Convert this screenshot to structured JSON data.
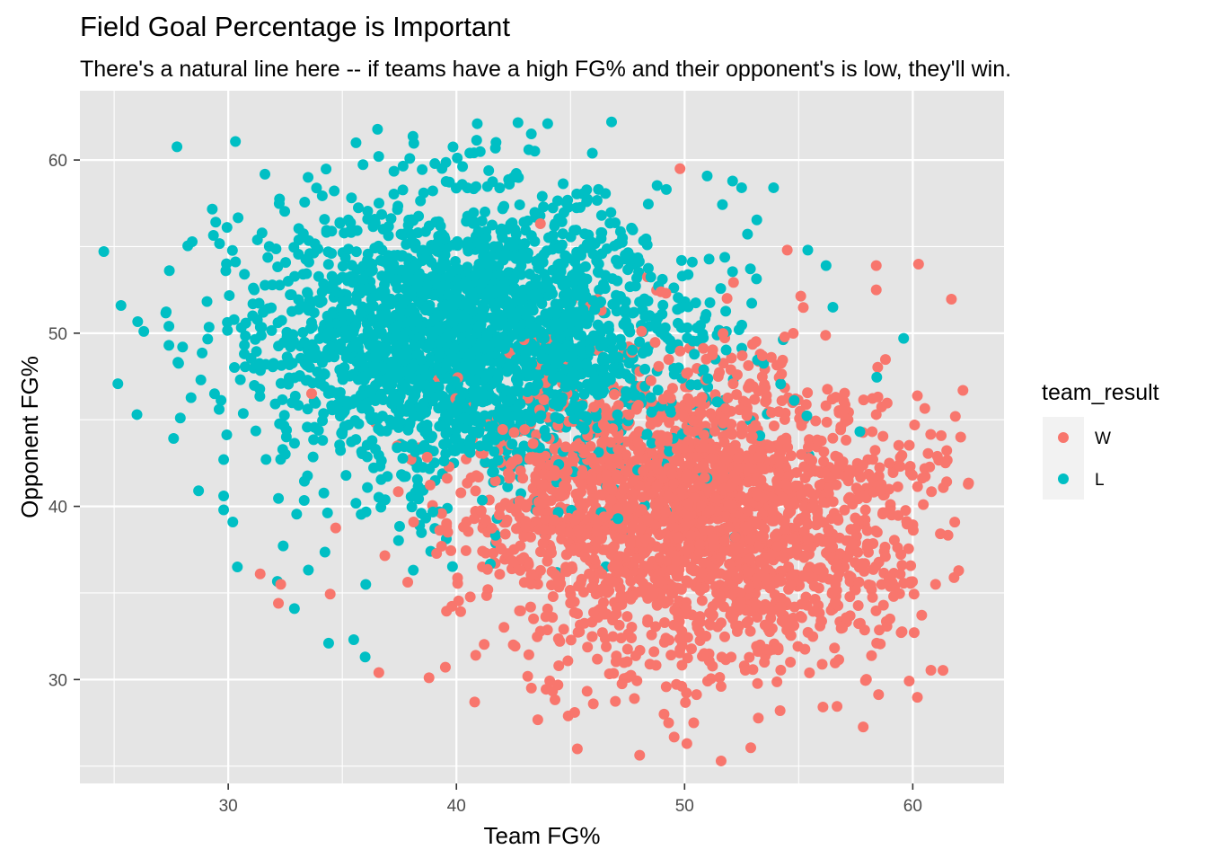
{
  "chart_data": {
    "type": "scatter",
    "title": "Field Goal Percentage is Important",
    "subtitle": "There's a natural line here -- if teams have a high FG% and their opponent's is low, they'll win.",
    "xlabel": "Team FG%",
    "ylabel": "Opponent FG%",
    "xlim": [
      23.5,
      64
    ],
    "ylim": [
      24,
      64
    ],
    "x_ticks": [
      30,
      40,
      50,
      60
    ],
    "y_ticks": [
      30,
      40,
      50,
      60
    ],
    "grid": true,
    "legend": {
      "title": "team_result",
      "placement": "right"
    },
    "colors": {
      "panel_background": "#E5E5E5",
      "grid_major": "#FFFFFF",
      "W": "#F8766D",
      "L": "#00BFC4"
    },
    "series": [
      {
        "name": "W",
        "color": "#F8766D",
        "sampling": {
          "count": 2400,
          "seed": 11,
          "team_fg_mean": 50.3,
          "team_fg_sd": 4.8,
          "opp_fg_mean": 39.6,
          "opp_fg_sd": 4.3,
          "correlation": -0.05
        },
        "points": [
          [
            49.8,
            59.5
          ],
          [
            62.2,
            46.7
          ],
          [
            62.1,
            44.0
          ],
          [
            61.0,
            35.5
          ],
          [
            59.0,
            33.5
          ],
          [
            58.4,
            53.9
          ],
          [
            58.4,
            52.5
          ],
          [
            58.8,
            37.1
          ],
          [
            57.9,
            36.7
          ],
          [
            51.6,
            25.3
          ],
          [
            45.3,
            26.0
          ],
          [
            50.1,
            26.3
          ],
          [
            50.4,
            27.5
          ],
          [
            44.9,
            27.9
          ],
          [
            49.3,
            27.5
          ],
          [
            49.1,
            28.0
          ],
          [
            47.8,
            28.9
          ],
          [
            40.8,
            28.7
          ],
          [
            46.0,
            28.6
          ],
          [
            38.8,
            30.1
          ],
          [
            36.6,
            30.4
          ],
          [
            32.2,
            34.4
          ],
          [
            31.4,
            36.1
          ],
          [
            32.3,
            35.5
          ],
          [
            58.4,
            45.3
          ],
          [
            56.5,
            36.9
          ],
          [
            57.0,
            36.5
          ],
          [
            54.5,
            54.8
          ],
          [
            51.6,
            29.6
          ]
        ]
      },
      {
        "name": "L",
        "color": "#00BFC4",
        "sampling": {
          "count": 2400,
          "seed": 29,
          "team_fg_mean": 40.7,
          "team_fg_sd": 4.8,
          "opp_fg_mean": 49.6,
          "opp_fg_sd": 4.3,
          "correlation": -0.05
        },
        "points": [
          [
            44.0,
            62.1
          ],
          [
            46.8,
            62.2
          ],
          [
            35.6,
            61.0
          ],
          [
            33.5,
            59.0
          ],
          [
            25.3,
            51.6
          ],
          [
            26.3,
            50.1
          ],
          [
            26.0,
            45.3
          ],
          [
            27.4,
            50.4
          ],
          [
            27.4,
            49.3
          ],
          [
            28.0,
            49.2
          ],
          [
            27.9,
            45.1
          ],
          [
            28.7,
            40.9
          ],
          [
            28.8,
            47.3
          ],
          [
            29.4,
            46.5
          ],
          [
            29.6,
            45.6
          ],
          [
            29.8,
            42.7
          ],
          [
            29.8,
            40.6
          ],
          [
            29.8,
            39.8
          ],
          [
            30.2,
            39.1
          ],
          [
            30.4,
            36.5
          ],
          [
            59.6,
            49.7
          ],
          [
            56.5,
            51.5
          ],
          [
            56.2,
            53.9
          ],
          [
            55.4,
            54.8
          ],
          [
            53.9,
            58.4
          ],
          [
            52.5,
            58.4
          ],
          [
            49.2,
            58.3
          ],
          [
            42.5,
            59.0
          ],
          [
            32.9,
            34.1
          ],
          [
            35.5,
            32.3
          ],
          [
            36.0,
            31.3
          ],
          [
            34.4,
            32.1
          ]
        ]
      }
    ]
  }
}
